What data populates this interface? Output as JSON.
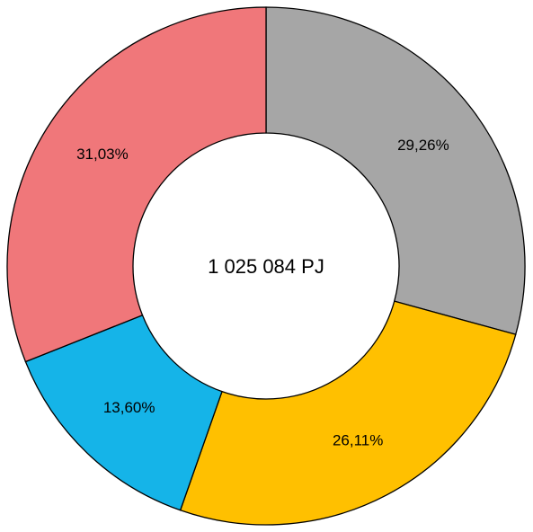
{
  "chart_data": {
    "type": "donut",
    "center_label": "1 025 084 PJ",
    "values": [
      29.26,
      26.11,
      13.6,
      31.03
    ],
    "value_labels": [
      "29,26%",
      "26,11%",
      "13,60%",
      "31,03%"
    ],
    "colors": [
      "#a6a6a6",
      "#ffc000",
      "#15b4e8",
      "#f0777a"
    ]
  }
}
